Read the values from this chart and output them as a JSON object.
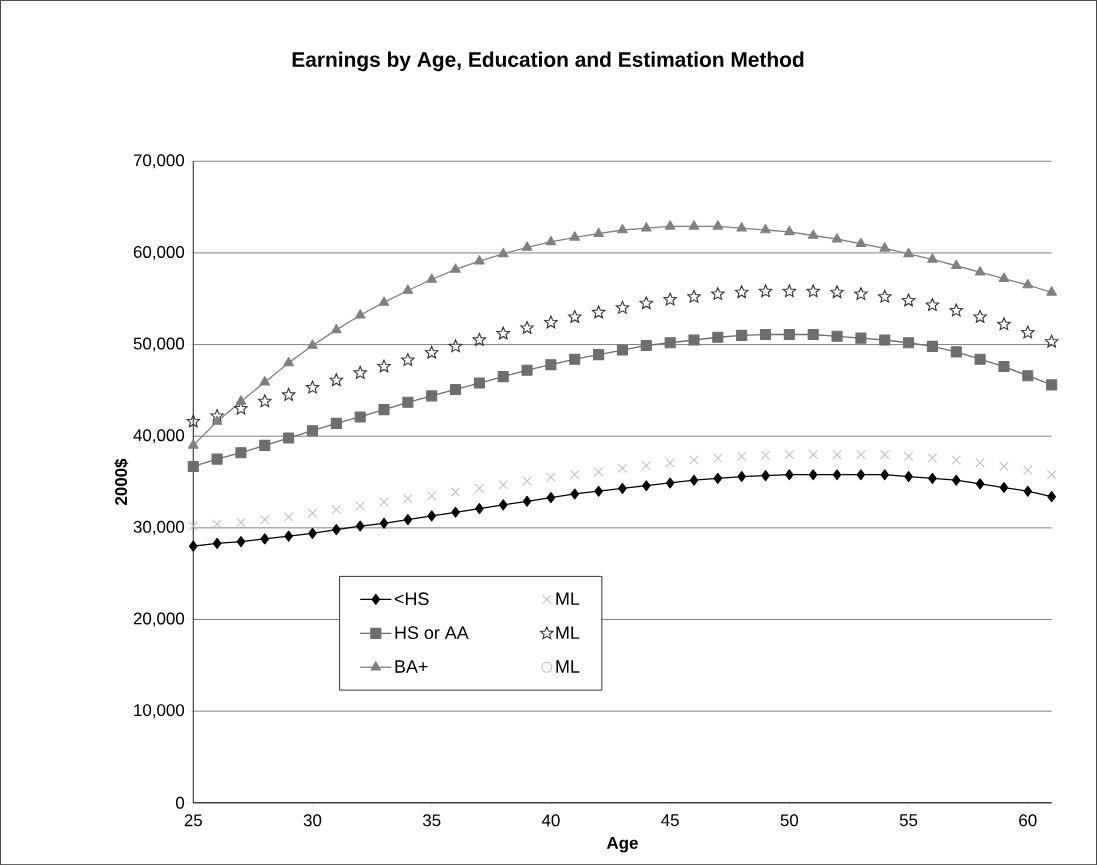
{
  "chart_data": {
    "type": "line",
    "title": "Earnings by Age, Education and Estimation Method",
    "xlabel": "Age",
    "ylabel": "2000$",
    "x": [
      25,
      26,
      27,
      28,
      29,
      30,
      31,
      32,
      33,
      34,
      35,
      36,
      37,
      38,
      39,
      40,
      41,
      42,
      43,
      44,
      45,
      46,
      47,
      48,
      49,
      50,
      51,
      52,
      53,
      54,
      55,
      56,
      57,
      58,
      59,
      60,
      61
    ],
    "series": [
      {
        "name": "<HS",
        "marker": "diamond",
        "color": "#000000",
        "values": [
          28000,
          28300,
          28500,
          28800,
          29100,
          29400,
          29800,
          30200,
          30500,
          30900,
          31300,
          31700,
          32100,
          32500,
          32900,
          33300,
          33700,
          34000,
          34300,
          34600,
          34900,
          35200,
          35400,
          35600,
          35700,
          35800,
          35800,
          35800,
          35800,
          35800,
          35600,
          35400,
          35200,
          34800,
          34400,
          34000,
          33400
        ]
      },
      {
        "name": "ML",
        "type": "scatter",
        "marker": "cross",
        "color": "#c0c0c0",
        "values": [
          30200,
          30400,
          30600,
          30900,
          31200,
          31600,
          32000,
          32400,
          32800,
          33200,
          33500,
          33900,
          34300,
          34700,
          35100,
          35500,
          35800,
          36100,
          36500,
          36800,
          37100,
          37400,
          37600,
          37800,
          37900,
          38000,
          38000,
          38000,
          38000,
          38000,
          37800,
          37600,
          37400,
          37100,
          36700,
          36300,
          35800
        ]
      },
      {
        "name": "HS or AA",
        "marker": "square",
        "color": "#6e6e6e",
        "values": [
          36700,
          37500,
          38200,
          39000,
          39800,
          40600,
          41400,
          42100,
          42900,
          43700,
          44400,
          45100,
          45800,
          46500,
          47200,
          47800,
          48400,
          48900,
          49400,
          49900,
          50200,
          50500,
          50800,
          51000,
          51100,
          51100,
          51100,
          50900,
          50700,
          50500,
          50200,
          49800,
          49200,
          48400,
          47600,
          46600,
          45600
        ]
      },
      {
        "name": "ML",
        "type": "scatter",
        "marker": "star",
        "color": "#333333",
        "values": [
          41600,
          42200,
          43000,
          43800,
          44500,
          45300,
          46100,
          46900,
          47600,
          48300,
          49100,
          49800,
          50500,
          51200,
          51800,
          52400,
          53000,
          53500,
          54000,
          54500,
          54900,
          55200,
          55500,
          55700,
          55800,
          55800,
          55800,
          55700,
          55500,
          55200,
          54800,
          54300,
          53700,
          53000,
          52200,
          51300,
          50300
        ]
      },
      {
        "name": "BA+",
        "marker": "triangle",
        "color": "#808080",
        "values": [
          39000,
          41600,
          43800,
          45900,
          48000,
          49900,
          51600,
          53200,
          54600,
          55900,
          57100,
          58200,
          59100,
          59900,
          60600,
          61200,
          61700,
          62100,
          62500,
          62700,
          62900,
          62900,
          62900,
          62700,
          62500,
          62300,
          61900,
          61500,
          61000,
          60500,
          59900,
          59300,
          58600,
          57900,
          57200,
          56500,
          55700
        ]
      },
      {
        "name": "ML",
        "type": "scatter",
        "marker": "circle",
        "color": "#c0c0c0",
        "values": [
          null,
          null,
          null,
          null,
          null,
          null,
          null,
          null,
          null,
          null,
          null,
          null,
          null,
          null,
          null,
          null,
          null,
          null,
          null,
          null,
          null,
          null,
          null,
          null,
          null,
          null,
          null,
          null,
          null,
          null,
          null,
          null,
          null,
          null,
          null,
          null,
          null
        ]
      }
    ],
    "xlim": [
      25,
      61
    ],
    "xticks": [
      25,
      30,
      35,
      40,
      45,
      50,
      55,
      60
    ],
    "ylim": [
      0,
      70000
    ],
    "yticks": [
      {
        "value": 0,
        "label": "0"
      },
      {
        "value": 10000,
        "label": "10,000"
      },
      {
        "value": 20000,
        "label": "20,000"
      },
      {
        "value": 30000,
        "label": "30,000"
      },
      {
        "value": 40000,
        "label": "40,000"
      },
      {
        "value": 50000,
        "label": "50,000"
      },
      {
        "value": 60000,
        "label": "60,000"
      },
      {
        "value": 70000,
        "label": "70,000"
      }
    ],
    "grid": "y",
    "legend": "bottom left"
  }
}
